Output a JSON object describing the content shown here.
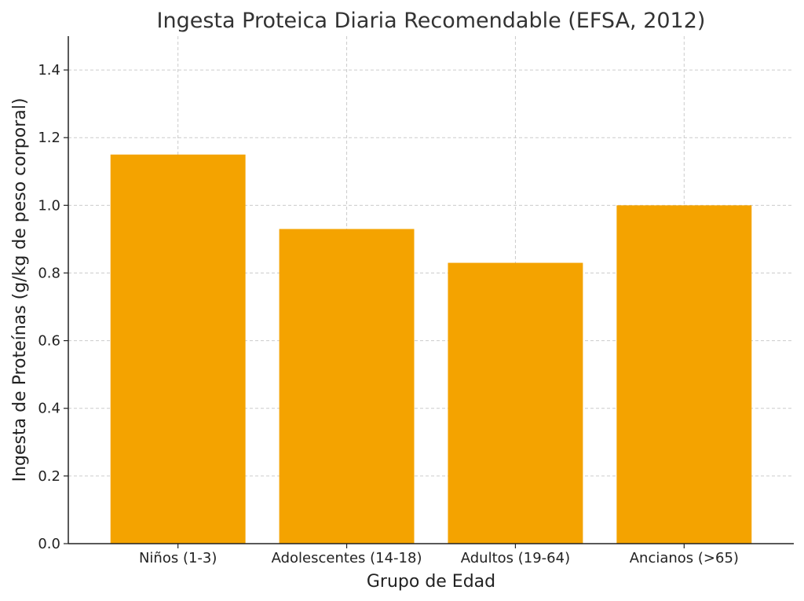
{
  "chart_data": {
    "type": "bar",
    "title": "Ingesta Proteica Diaria Recomendable (EFSA, 2012)",
    "xlabel": "Grupo de Edad",
    "ylabel": "Ingesta de Proteínas (g/kg de peso corporal)",
    "categories": [
      "Niños (1-3)",
      "Adolescentes (14-18)",
      "Adultos (19-64)",
      "Ancianos (>65)"
    ],
    "values": [
      1.15,
      0.93,
      0.83,
      1.0
    ],
    "ylim": [
      0,
      1.5
    ],
    "yticks": [
      "0.0",
      "0.2",
      "0.4",
      "0.6",
      "0.8",
      "1.0",
      "1.2",
      "1.4"
    ],
    "grid": true,
    "legend": "none",
    "bar_color": "#f4a300"
  }
}
